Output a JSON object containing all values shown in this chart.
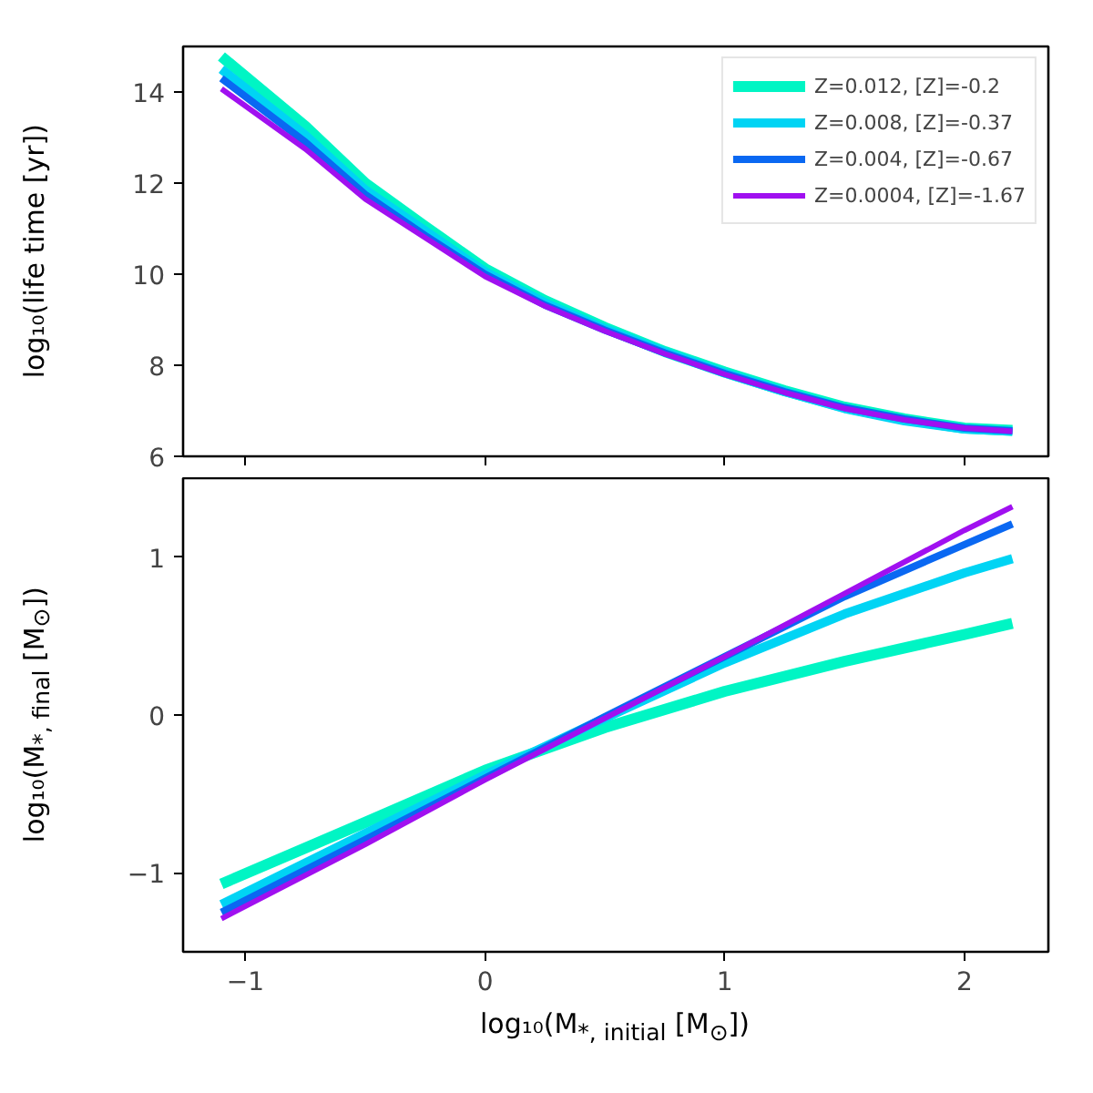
{
  "chart_data": [
    {
      "type": "line",
      "ylabel": "log₁₀(life time [yr])",
      "x": [
        -1.1,
        -0.75,
        -0.5,
        -0.25,
        0,
        0.25,
        0.5,
        0.75,
        1,
        1.25,
        1.5,
        1.75,
        2,
        2.2
      ],
      "xlim": [
        -1.26,
        2.35
      ],
      "xticks": [
        -1,
        0,
        1,
        2
      ],
      "ylim": [
        6,
        15
      ],
      "yticks": [
        6,
        8,
        10,
        12,
        14
      ],
      "tick_labels": "y",
      "grid": false,
      "legend": "top right",
      "series": [
        {
          "name": "Z=0.012, [Z]=-0.2",
          "color": "#00f5c4",
          "values": [
            14.78,
            13.25,
            12.0,
            11.05,
            10.12,
            9.42,
            8.83,
            8.3,
            7.85,
            7.44,
            7.08,
            6.82,
            6.62,
            6.57
          ]
        },
        {
          "name": "Z=0.008, [Z]=-0.37",
          "color": "#00d4f4",
          "values": [
            14.5,
            13.05,
            11.85,
            10.95,
            10.05,
            9.37,
            8.8,
            8.29,
            7.83,
            7.42,
            7.05,
            6.78,
            6.6,
            6.55
          ]
        },
        {
          "name": "Z=0.004, [Z]=-0.67",
          "color": "#0a68f2",
          "values": [
            14.3,
            12.9,
            11.75,
            10.85,
            10.0,
            9.32,
            8.77,
            8.27,
            7.82,
            7.42,
            7.07,
            6.82,
            6.62,
            6.56
          ]
        },
        {
          "name": "Z=0.0004, [Z]=-1.67",
          "color": "#a010f0",
          "values": [
            14.07,
            12.75,
            11.65,
            10.8,
            9.95,
            9.3,
            8.75,
            8.25,
            7.8,
            7.4,
            7.05,
            6.8,
            6.62,
            6.55
          ]
        }
      ]
    },
    {
      "type": "line",
      "xlabel": "log₁₀(M$_{*, initial}$ [M$_{⊙}$])",
      "ylabel": "log₁₀(M$_{*, final}$ [M$_{⊙}$])",
      "x": [
        -1.1,
        -0.5,
        0,
        0.5,
        1,
        1.5,
        2,
        2.2
      ],
      "xlim": [
        -1.26,
        2.35
      ],
      "xticks": [
        -1,
        0,
        1,
        2
      ],
      "ylim": [
        -1.5,
        1.5
      ],
      "yticks": [
        -1,
        0,
        1
      ],
      "grid": false,
      "legend": false,
      "series": [
        {
          "color": "#00f5c4",
          "values": [
            -1.07,
            -0.68,
            -0.35,
            -0.08,
            0.15,
            0.34,
            0.51,
            0.58
          ]
        },
        {
          "color": "#00d4f4",
          "values": [
            -1.2,
            -0.75,
            -0.38,
            -0.02,
            0.33,
            0.64,
            0.9,
            0.99
          ]
        },
        {
          "color": "#0a68f2",
          "values": [
            -1.25,
            -0.79,
            -0.4,
            -0.01,
            0.37,
            0.75,
            1.08,
            1.21
          ]
        },
        {
          "color": "#a010f0",
          "values": [
            -1.29,
            -0.82,
            -0.41,
            -0.02,
            0.37,
            0.77,
            1.17,
            1.32
          ]
        }
      ]
    }
  ]
}
